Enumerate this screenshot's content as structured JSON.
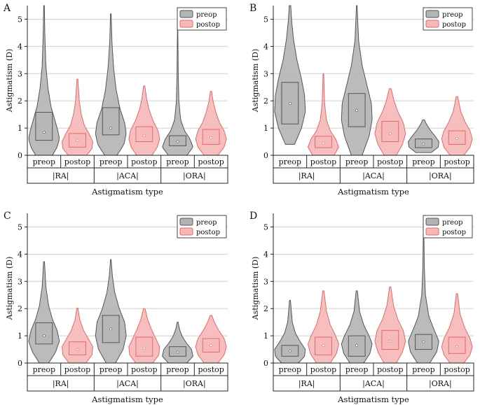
{
  "colors": {
    "preop_fill": "#b4b4b4",
    "preop_edge": "#555555",
    "postop_fill": "#f6b7b7",
    "postop_edge": "#e36a6a",
    "grid": "#d0d0d0"
  },
  "chart_data": [
    {
      "panel": "A",
      "type": "violin",
      "ylabel": "Astigmatism (D)",
      "xlabel": "Astigmatism type",
      "ylim": [
        0,
        5.5
      ],
      "yticks": [
        0,
        1,
        2,
        3,
        4,
        5
      ],
      "grid": true,
      "legend": "top-right",
      "legend_entries": [
        "preop",
        "postop"
      ],
      "groups": [
        "|RA|",
        "|ACA|",
        "|ORA|"
      ],
      "categories": [
        "preop",
        "postop"
      ],
      "series": [
        {
          "group": "|RA|",
          "name": "preop",
          "min": 0.0,
          "q1": 0.55,
          "median": 0.85,
          "q3": 1.58,
          "max": 5.5,
          "spread": [
            [
              0,
              0.55
            ],
            [
              0.3,
              0.85
            ],
            [
              0.6,
              1.0
            ],
            [
              0.9,
              0.9
            ],
            [
              1.3,
              0.7
            ],
            [
              1.8,
              0.45
            ],
            [
              2.5,
              0.25
            ],
            [
              3.3,
              0.12
            ],
            [
              4.5,
              0.05
            ],
            [
              5.5,
              0.02
            ]
          ]
        },
        {
          "group": "|RA|",
          "name": "postop",
          "min": 0.0,
          "q1": 0.3,
          "median": 0.55,
          "q3": 0.8,
          "max": 2.8,
          "spread": [
            [
              0,
              0.6
            ],
            [
              0.25,
              0.95
            ],
            [
              0.5,
              1.0
            ],
            [
              0.8,
              0.75
            ],
            [
              1.1,
              0.45
            ],
            [
              1.5,
              0.25
            ],
            [
              2.0,
              0.12
            ],
            [
              2.8,
              0.03
            ]
          ]
        },
        {
          "group": "|ACA|",
          "name": "preop",
          "min": 0.0,
          "q1": 0.75,
          "median": 1.0,
          "q3": 1.75,
          "max": 5.2,
          "spread": [
            [
              0,
              0.4
            ],
            [
              0.4,
              0.85
            ],
            [
              0.8,
              1.0
            ],
            [
              1.2,
              0.9
            ],
            [
              1.7,
              0.6
            ],
            [
              2.4,
              0.35
            ],
            [
              3.2,
              0.18
            ],
            [
              4.2,
              0.07
            ],
            [
              5.2,
              0.02
            ]
          ]
        },
        {
          "group": "|ACA|",
          "name": "postop",
          "min": 0.0,
          "q1": 0.5,
          "median": 0.72,
          "q3": 1.05,
          "max": 2.55,
          "spread": [
            [
              0,
              0.5
            ],
            [
              0.3,
              0.85
            ],
            [
              0.6,
              1.0
            ],
            [
              0.9,
              0.9
            ],
            [
              1.3,
              0.55
            ],
            [
              1.7,
              0.3
            ],
            [
              2.1,
              0.15
            ],
            [
              2.55,
              0.04
            ]
          ]
        },
        {
          "group": "|ORA|",
          "name": "preop",
          "min": 0.0,
          "q1": 0.35,
          "median": 0.5,
          "q3": 0.72,
          "max": 4.75,
          "spread": [
            [
              0,
              0.6
            ],
            [
              0.3,
              1.0
            ],
            [
              0.6,
              0.8
            ],
            [
              0.9,
              0.45
            ],
            [
              1.3,
              0.2
            ],
            [
              2.0,
              0.08
            ],
            [
              3.0,
              0.04
            ],
            [
              4.75,
              0.01
            ]
          ]
        },
        {
          "group": "|ORA|",
          "name": "postop",
          "min": 0.0,
          "q1": 0.4,
          "median": 0.65,
          "q3": 0.95,
          "max": 2.35,
          "spread": [
            [
              0,
              0.45
            ],
            [
              0.3,
              0.85
            ],
            [
              0.6,
              1.0
            ],
            [
              0.9,
              0.85
            ],
            [
              1.2,
              0.55
            ],
            [
              1.6,
              0.3
            ],
            [
              2.0,
              0.13
            ],
            [
              2.35,
              0.04
            ]
          ]
        }
      ]
    },
    {
      "panel": "B",
      "type": "violin",
      "ylabel": "Astigmatism (D)",
      "xlabel": "Astigmatism type",
      "ylim": [
        0,
        5.5
      ],
      "yticks": [
        0,
        1,
        2,
        3,
        4,
        5
      ],
      "grid": true,
      "legend": "top-right",
      "legend_entries": [
        "preop",
        "postop"
      ],
      "groups": [
        "|RA|",
        "|ACA|",
        "|ORA|"
      ],
      "categories": [
        "preop",
        "postop"
      ],
      "series": [
        {
          "group": "|RA|",
          "name": "preop",
          "min": 0.4,
          "q1": 1.15,
          "median": 1.9,
          "q3": 2.68,
          "max": 5.5,
          "spread": [
            [
              0.4,
              0.3
            ],
            [
              1.0,
              0.75
            ],
            [
              1.6,
              1.0
            ],
            [
              2.2,
              0.95
            ],
            [
              2.8,
              0.75
            ],
            [
              3.5,
              0.45
            ],
            [
              4.3,
              0.22
            ],
            [
              5.0,
              0.1
            ],
            [
              5.5,
              0.05
            ]
          ]
        },
        {
          "group": "|RA|",
          "name": "postop",
          "min": 0.0,
          "q1": 0.28,
          "median": 0.45,
          "q3": 0.7,
          "max": 3.0,
          "spread": [
            [
              0,
              0.7
            ],
            [
              0.3,
              1.0
            ],
            [
              0.6,
              0.8
            ],
            [
              0.9,
              0.45
            ],
            [
              1.3,
              0.2
            ],
            [
              1.9,
              0.08
            ],
            [
              3.0,
              0.02
            ]
          ]
        },
        {
          "group": "|ACA|",
          "name": "preop",
          "min": 0.0,
          "q1": 1.05,
          "median": 1.65,
          "q3": 2.27,
          "max": 5.5,
          "spread": [
            [
              0,
              0.35
            ],
            [
              0.7,
              0.8
            ],
            [
              1.3,
              1.0
            ],
            [
              1.9,
              0.95
            ],
            [
              2.6,
              0.65
            ],
            [
              3.3,
              0.35
            ],
            [
              4.2,
              0.12
            ],
            [
              5.5,
              0.02
            ]
          ]
        },
        {
          "group": "|ACA|",
          "name": "postop",
          "min": 0.0,
          "q1": 0.5,
          "median": 0.8,
          "q3": 1.25,
          "max": 2.45,
          "spread": [
            [
              0,
              0.4
            ],
            [
              0.4,
              0.8
            ],
            [
              0.8,
              1.0
            ],
            [
              1.2,
              0.85
            ],
            [
              1.6,
              0.5
            ],
            [
              2.0,
              0.25
            ],
            [
              2.45,
              0.06
            ]
          ]
        },
        {
          "group": "|ORA|",
          "name": "preop",
          "min": 0.1,
          "q1": 0.28,
          "median": 0.42,
          "q3": 0.6,
          "max": 1.3,
          "spread": [
            [
              0.1,
              0.5
            ],
            [
              0.3,
              0.95
            ],
            [
              0.5,
              1.0
            ],
            [
              0.7,
              0.75
            ],
            [
              0.95,
              0.4
            ],
            [
              1.15,
              0.18
            ],
            [
              1.3,
              0.06
            ]
          ]
        },
        {
          "group": "|ORA|",
          "name": "postop",
          "min": 0.0,
          "q1": 0.4,
          "median": 0.62,
          "q3": 0.9,
          "max": 2.15,
          "spread": [
            [
              0,
              0.45
            ],
            [
              0.3,
              0.85
            ],
            [
              0.6,
              1.0
            ],
            [
              0.9,
              0.85
            ],
            [
              1.2,
              0.55
            ],
            [
              1.6,
              0.25
            ],
            [
              2.15,
              0.05
            ]
          ]
        }
      ]
    },
    {
      "panel": "C",
      "type": "violin",
      "ylabel": "Astigmatism (D)",
      "xlabel": "Astigmatism type",
      "ylim": [
        0,
        5.5
      ],
      "yticks": [
        0,
        1,
        2,
        3,
        4,
        5
      ],
      "grid": true,
      "legend": "top-right",
      "legend_entries": [
        "preop",
        "postop"
      ],
      "groups": [
        "|RA|",
        "|ACA|",
        "|ORA|"
      ],
      "categories": [
        "preop",
        "postop"
      ],
      "series": [
        {
          "group": "|RA|",
          "name": "preop",
          "min": 0.0,
          "q1": 0.7,
          "median": 1.0,
          "q3": 1.48,
          "max": 3.72,
          "spread": [
            [
              0,
              0.3
            ],
            [
              0.4,
              0.75
            ],
            [
              0.8,
              1.0
            ],
            [
              1.2,
              0.85
            ],
            [
              1.6,
              0.55
            ],
            [
              2.1,
              0.3
            ],
            [
              2.8,
              0.12
            ],
            [
              3.72,
              0.03
            ]
          ]
        },
        {
          "group": "|RA|",
          "name": "postop",
          "min": 0.0,
          "q1": 0.3,
          "median": 0.5,
          "q3": 0.78,
          "max": 2.02,
          "spread": [
            [
              0,
              0.55
            ],
            [
              0.3,
              0.95
            ],
            [
              0.6,
              1.0
            ],
            [
              0.9,
              0.7
            ],
            [
              1.2,
              0.4
            ],
            [
              1.6,
              0.15
            ],
            [
              2.02,
              0.03
            ]
          ]
        },
        {
          "group": "|ACA|",
          "name": "preop",
          "min": 0.0,
          "q1": 0.75,
          "median": 1.25,
          "q3": 1.75,
          "max": 3.8,
          "spread": [
            [
              0,
              0.3
            ],
            [
              0.5,
              0.8
            ],
            [
              1.0,
              1.0
            ],
            [
              1.5,
              0.9
            ],
            [
              2.0,
              0.55
            ],
            [
              2.6,
              0.25
            ],
            [
              3.2,
              0.1
            ],
            [
              3.8,
              0.02
            ]
          ]
        },
        {
          "group": "|ACA|",
          "name": "postop",
          "min": 0.0,
          "q1": 0.25,
          "median": 0.55,
          "q3": 0.95,
          "max": 2.0,
          "spread": [
            [
              0,
              0.55
            ],
            [
              0.3,
              0.95
            ],
            [
              0.6,
              1.0
            ],
            [
              0.9,
              0.75
            ],
            [
              1.2,
              0.5
            ],
            [
              1.6,
              0.22
            ],
            [
              2.0,
              0.05
            ]
          ]
        },
        {
          "group": "|ORA|",
          "name": "preop",
          "min": 0.0,
          "q1": 0.25,
          "median": 0.4,
          "q3": 0.6,
          "max": 1.5,
          "spread": [
            [
              0,
              0.6
            ],
            [
              0.25,
              1.0
            ],
            [
              0.5,
              0.9
            ],
            [
              0.75,
              0.55
            ],
            [
              1.0,
              0.28
            ],
            [
              1.25,
              0.12
            ],
            [
              1.5,
              0.03
            ]
          ]
        },
        {
          "group": "|ORA|",
          "name": "postop",
          "min": 0.0,
          "q1": 0.4,
          "median": 0.65,
          "q3": 0.9,
          "max": 1.75,
          "spread": [
            [
              0,
              0.45
            ],
            [
              0.3,
              0.85
            ],
            [
              0.6,
              1.0
            ],
            [
              0.9,
              0.85
            ],
            [
              1.2,
              0.5
            ],
            [
              1.5,
              0.22
            ],
            [
              1.75,
              0.05
            ]
          ]
        }
      ]
    },
    {
      "panel": "D",
      "type": "violin",
      "ylabel": "Astigmatism (D)",
      "xlabel": "Astigmatism type",
      "ylim": [
        0,
        5.5
      ],
      "yticks": [
        0,
        1,
        2,
        3,
        4,
        5
      ],
      "grid": true,
      "legend": "top-right",
      "legend_entries": [
        "preop",
        "postop"
      ],
      "groups": [
        "|RA|",
        "|ACA|",
        "|ORA|"
      ],
      "categories": [
        "preop",
        "postop"
      ],
      "series": [
        {
          "group": "|RA|",
          "name": "preop",
          "min": 0.0,
          "q1": 0.25,
          "median": 0.45,
          "q3": 0.65,
          "max": 2.3,
          "spread": [
            [
              0,
              0.55
            ],
            [
              0.25,
              0.95
            ],
            [
              0.5,
              1.0
            ],
            [
              0.8,
              0.65
            ],
            [
              1.1,
              0.35
            ],
            [
              1.5,
              0.15
            ],
            [
              2.3,
              0.03
            ]
          ]
        },
        {
          "group": "|RA|",
          "name": "postop",
          "min": 0.0,
          "q1": 0.3,
          "median": 0.65,
          "q3": 0.95,
          "max": 2.65,
          "spread": [
            [
              0,
              0.45
            ],
            [
              0.35,
              0.85
            ],
            [
              0.7,
              1.0
            ],
            [
              1.0,
              0.8
            ],
            [
              1.4,
              0.45
            ],
            [
              1.9,
              0.2
            ],
            [
              2.65,
              0.04
            ]
          ]
        },
        {
          "group": "|ACA|",
          "name": "preop",
          "min": 0.0,
          "q1": 0.25,
          "median": 0.65,
          "q3": 1.0,
          "max": 2.65,
          "spread": [
            [
              0,
              0.45
            ],
            [
              0.35,
              0.85
            ],
            [
              0.7,
              1.0
            ],
            [
              1.0,
              0.8
            ],
            [
              1.4,
              0.45
            ],
            [
              1.9,
              0.18
            ],
            [
              2.65,
              0.04
            ]
          ]
        },
        {
          "group": "|ACA|",
          "name": "postop",
          "min": 0.0,
          "q1": 0.5,
          "median": 0.8,
          "q3": 1.2,
          "max": 2.8,
          "spread": [
            [
              0,
              0.4
            ],
            [
              0.4,
              0.8
            ],
            [
              0.8,
              1.0
            ],
            [
              1.2,
              0.85
            ],
            [
              1.6,
              0.5
            ],
            [
              2.1,
              0.22
            ],
            [
              2.8,
              0.04
            ]
          ]
        },
        {
          "group": "|ORA|",
          "name": "preop",
          "min": 0.0,
          "q1": 0.5,
          "median": 0.78,
          "q3": 1.05,
          "max": 5.0,
          "spread": [
            [
              0,
              0.4
            ],
            [
              0.4,
              0.85
            ],
            [
              0.8,
              1.0
            ],
            [
              1.2,
              0.7
            ],
            [
              1.7,
              0.35
            ],
            [
              2.5,
              0.12
            ],
            [
              3.5,
              0.05
            ],
            [
              5.0,
              0.01
            ]
          ]
        },
        {
          "group": "|ORA|",
          "name": "postop",
          "min": 0.0,
          "q1": 0.35,
          "median": 0.6,
          "q3": 0.95,
          "max": 2.55,
          "spread": [
            [
              0,
              0.45
            ],
            [
              0.3,
              0.85
            ],
            [
              0.6,
              1.0
            ],
            [
              0.9,
              0.85
            ],
            [
              1.3,
              0.5
            ],
            [
              1.8,
              0.2
            ],
            [
              2.55,
              0.04
            ]
          ]
        }
      ]
    }
  ]
}
